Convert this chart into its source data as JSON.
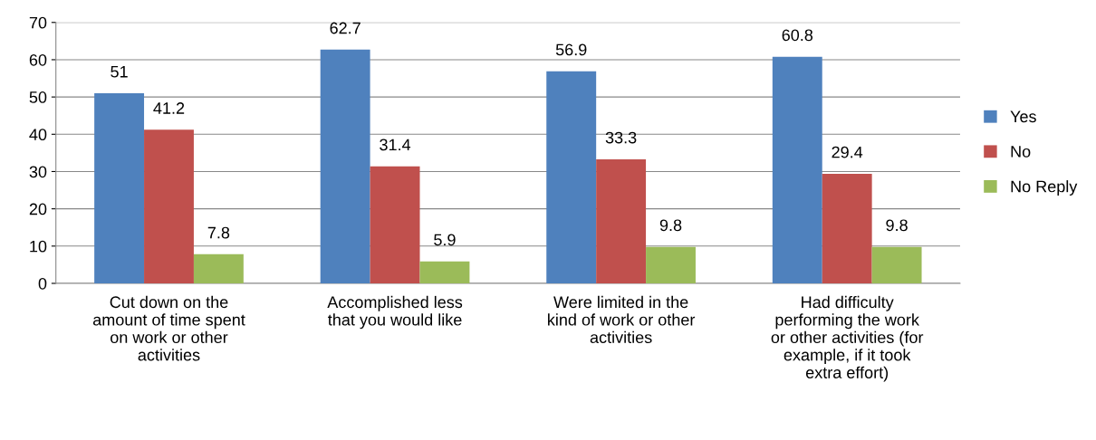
{
  "chart_data": {
    "type": "bar",
    "categories": [
      "Cut down on the\namount of time spent\non work or other\nactivities",
      "Accomplished less\nthat you would like",
      "Were limited in the\nkind of work or other\nactivities",
      "Had difficulty\nperforming the work\nor other activities (for\nexample, if it took\nextra effort)"
    ],
    "series": [
      {
        "name": "Yes",
        "color": "#4f81bd",
        "values": [
          51,
          62.7,
          56.9,
          60.8
        ]
      },
      {
        "name": "No",
        "color": "#c0504d",
        "values": [
          41.2,
          31.4,
          33.3,
          29.4
        ]
      },
      {
        "name": "No Reply",
        "color": "#9bbb59",
        "values": [
          7.8,
          5.9,
          9.8,
          9.8
        ]
      }
    ],
    "ylim": [
      0,
      70
    ],
    "yticks": [
      0,
      10,
      20,
      30,
      40,
      50,
      60,
      70
    ],
    "grid": "y",
    "legend": "right",
    "data_labels": true
  }
}
